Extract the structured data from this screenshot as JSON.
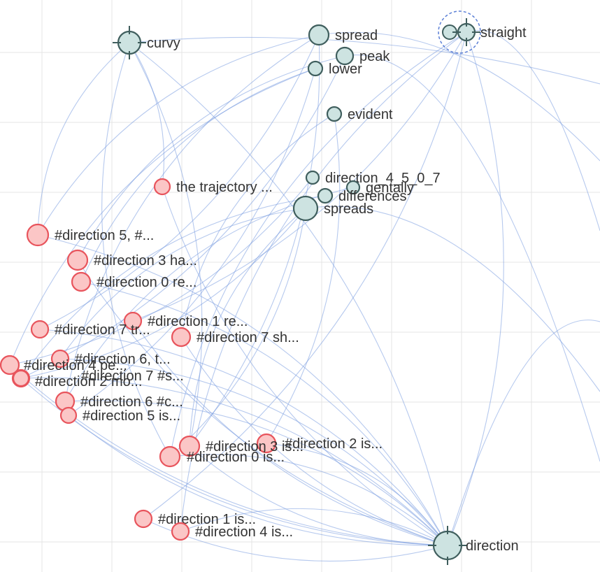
{
  "graph": {
    "colors": {
      "background": "#ffffff",
      "grid": "#e4e4e4",
      "edge": "#7a9ce0",
      "term_fill": "#cde3e1",
      "term_stroke": "#3f5e5d",
      "doc_fill": "#fbc6c6",
      "doc_stroke": "#e8545c",
      "label": "#333333",
      "selection_ring": "#5b7fd6"
    },
    "term_nodes": [
      {
        "id": "curvy",
        "label": "curvy",
        "crosshair": true
      },
      {
        "id": "spread",
        "label": "spread"
      },
      {
        "id": "peak",
        "label": "peak"
      },
      {
        "id": "lower",
        "label": "lower"
      },
      {
        "id": "straight",
        "label": "straight",
        "crosshair": true,
        "selected": true
      },
      {
        "id": "evident",
        "label": "evident"
      },
      {
        "id": "direction_4_5_0_7",
        "label": "direction_4_5_0_7"
      },
      {
        "id": "gentally",
        "label": "gentally"
      },
      {
        "id": "differences",
        "label": "differences"
      },
      {
        "id": "spreads",
        "label": "spreads"
      },
      {
        "id": "direction",
        "label": "direction",
        "crosshair": true
      }
    ],
    "doc_nodes": [
      {
        "id": "d1",
        "label": "the trajectory ..."
      },
      {
        "id": "d2",
        "label": "#direction 5, #..."
      },
      {
        "id": "d3",
        "label": "#direction 3 ha..."
      },
      {
        "id": "d4",
        "label": "#direction 0 re..."
      },
      {
        "id": "d5",
        "label": "#direction 1 re..."
      },
      {
        "id": "d6",
        "label": "#direction 7 tr..."
      },
      {
        "id": "d7",
        "label": "#direction 7 sh..."
      },
      {
        "id": "d8",
        "label": "#direction 6, t..."
      },
      {
        "id": "d9",
        "label": "#direction 4 pe..."
      },
      {
        "id": "d10",
        "label": "#direction 7 #s..."
      },
      {
        "id": "d11",
        "label": "#direction 2 mo..."
      },
      {
        "id": "d12",
        "label": "#direction 6 #c..."
      },
      {
        "id": "d13",
        "label": "#direction 5 is..."
      },
      {
        "id": "d14",
        "label": "#direction 2 is..."
      },
      {
        "id": "d15",
        "label": "#direction 3 is..."
      },
      {
        "id": "d16",
        "label": "#direction 0 is..."
      },
      {
        "id": "d17",
        "label": "#direction 1 is..."
      },
      {
        "id": "d18",
        "label": "#direction 4 is..."
      }
    ],
    "edges": [
      [
        "curvy",
        "d1"
      ],
      [
        "curvy",
        "d2"
      ],
      [
        "curvy",
        "d15"
      ],
      [
        "curvy",
        "d16"
      ],
      [
        "curvy",
        "direction"
      ],
      [
        "spread",
        "d2"
      ],
      [
        "spread",
        "d6"
      ],
      [
        "spread",
        "d12"
      ],
      [
        "spread",
        "d15"
      ],
      [
        "peak",
        "d3"
      ],
      [
        "peak",
        "d11"
      ],
      [
        "lower",
        "d4"
      ],
      [
        "lower",
        "d13"
      ],
      [
        "lower",
        "d9"
      ],
      [
        "straight",
        "d5"
      ],
      [
        "straight",
        "d16"
      ],
      [
        "straight",
        "d17"
      ],
      [
        "straight",
        "d18"
      ],
      [
        "straight",
        "direction"
      ],
      [
        "evident",
        "d7"
      ],
      [
        "evident",
        "d14"
      ],
      [
        "spreads",
        "d8"
      ],
      [
        "spreads",
        "d10"
      ],
      [
        "spreads",
        "d15"
      ],
      [
        "spreads",
        "d16"
      ],
      [
        "differences",
        "d11"
      ],
      [
        "direction_4_5_0_7",
        "d9"
      ],
      [
        "gentally",
        "d12"
      ],
      [
        "direction",
        "d1"
      ],
      [
        "direction",
        "d2"
      ],
      [
        "direction",
        "d3"
      ],
      [
        "direction",
        "d4"
      ],
      [
        "direction",
        "d5"
      ],
      [
        "direction",
        "d6"
      ],
      [
        "direction",
        "d7"
      ],
      [
        "direction",
        "d8"
      ],
      [
        "direction",
        "d9"
      ],
      [
        "direction",
        "d10"
      ],
      [
        "direction",
        "d11"
      ],
      [
        "direction",
        "d12"
      ],
      [
        "direction",
        "d13"
      ],
      [
        "direction",
        "d14"
      ],
      [
        "direction",
        "d15"
      ],
      [
        "direction",
        "d16"
      ],
      [
        "direction",
        "d17"
      ],
      [
        "direction",
        "d18"
      ]
    ]
  }
}
